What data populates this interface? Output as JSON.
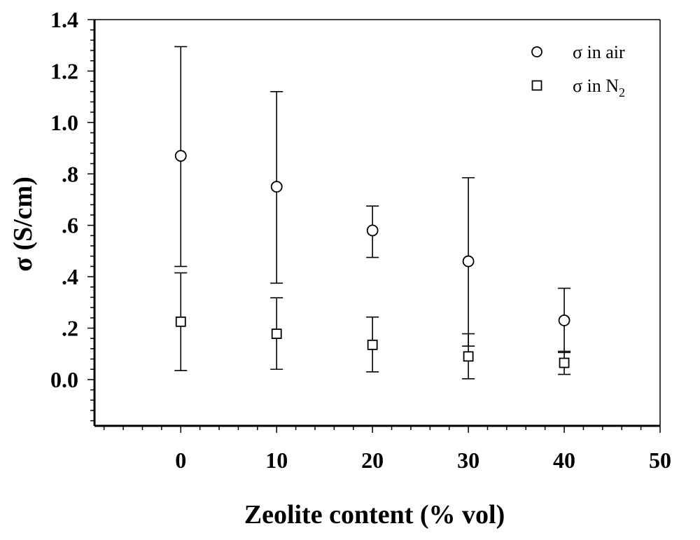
{
  "chart_data": {
    "type": "scatter",
    "xlabel": "Zeolite content (% vol)",
    "ylabel": "σ (S/cm)",
    "xlim": [
      -9,
      50
    ],
    "ylim": [
      -0.18,
      1.4
    ],
    "x_ticks": [
      0,
      10,
      20,
      30,
      40,
      50
    ],
    "x_tick_labels": [
      "0",
      "10",
      "20",
      "30",
      "40",
      "50"
    ],
    "y_ticks": [
      0.0,
      0.2,
      0.4,
      0.6,
      0.8,
      1.0,
      1.2,
      1.4
    ],
    "y_tick_labels": [
      "0.0",
      ".2",
      ".4",
      ".6",
      ".8",
      "1.0",
      "1.2",
      "1.4"
    ],
    "grid": false,
    "legend_position": "top-right",
    "series": [
      {
        "name": "σ in air",
        "marker": "circle",
        "color": "#000000",
        "x": [
          0,
          10,
          20,
          30,
          40
        ],
        "y": [
          0.87,
          0.75,
          0.58,
          0.46,
          0.23
        ],
        "err_low": [
          0.44,
          0.375,
          0.475,
          0.13,
          0.105
        ],
        "err_high": [
          1.295,
          1.12,
          0.675,
          0.785,
          0.355
        ]
      },
      {
        "name": "σ in N",
        "name_subscript": "2",
        "marker": "square",
        "color": "#000000",
        "x": [
          0,
          10,
          20,
          30,
          40
        ],
        "y": [
          0.225,
          0.178,
          0.135,
          0.09,
          0.065
        ],
        "err_low": [
          0.035,
          0.04,
          0.03,
          0.003,
          0.02
        ],
        "err_high": [
          0.415,
          0.318,
          0.243,
          0.178,
          0.11
        ]
      }
    ]
  }
}
